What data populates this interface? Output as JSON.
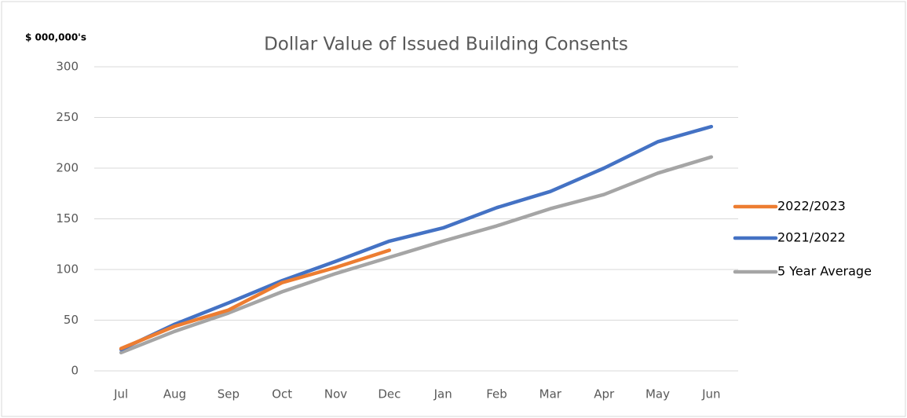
{
  "chart_data": {
    "type": "line",
    "title": "Dollar Value of Issued Building Consents",
    "y_label": "$ 000,000's",
    "categories": [
      "Jul",
      "Aug",
      "Sep",
      "Oct",
      "Nov",
      "Dec",
      "Jan",
      "Feb",
      "Mar",
      "Apr",
      "May",
      "Jun"
    ],
    "series": [
      {
        "name": "2022/2023",
        "color": "#ed7d31",
        "values": [
          22,
          44,
          60,
          87,
          102,
          119,
          null,
          null,
          null,
          null,
          null,
          null
        ]
      },
      {
        "name": "2021/2022",
        "color": "#4472c4",
        "values": [
          21,
          46,
          67,
          89,
          108,
          128,
          141,
          161,
          177,
          200,
          226,
          241
        ]
      },
      {
        "name": "5 Year Average",
        "color": "#a5a5a5",
        "values": [
          18,
          39,
          57,
          78,
          96,
          112,
          128,
          143,
          160,
          174,
          195,
          211
        ]
      }
    ],
    "ylim": [
      0,
      300
    ],
    "yticks": [
      0,
      50,
      100,
      150,
      200,
      250,
      300
    ],
    "grid": true,
    "legend": "right"
  }
}
